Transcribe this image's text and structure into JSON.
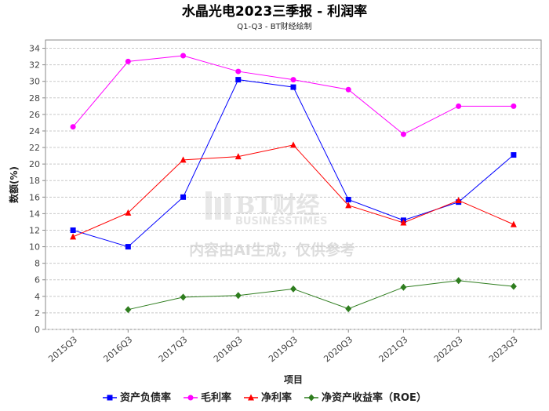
{
  "title": "水晶光电2023三季报 - 利润率",
  "subtitle": "Q1-Q3 - BT财经绘制",
  "watermark": {
    "brand": "BT财经",
    "brand_en": "BUSINESSTIMES",
    "note": "内容由AI生成，仅供参考"
  },
  "chart_data": {
    "type": "line",
    "xlabel": "项目",
    "ylabel": "数额(%)",
    "ylim": [
      0,
      35
    ],
    "yticks": [
      0,
      2,
      4,
      6,
      8,
      10,
      12,
      14,
      16,
      18,
      20,
      22,
      24,
      26,
      28,
      30,
      32,
      34
    ],
    "categories": [
      "2015Q3",
      "2016Q3",
      "2017Q3",
      "2018Q3",
      "2019Q3",
      "2020Q3",
      "2021Q3",
      "2022Q3",
      "2023Q3"
    ],
    "grid": true,
    "legend_position": "bottom",
    "series": [
      {
        "name": "资产负债率",
        "color": "#0000ff",
        "marker": "square",
        "values": [
          12.0,
          10.0,
          16.0,
          30.2,
          29.3,
          15.7,
          13.2,
          15.4,
          21.1
        ]
      },
      {
        "name": "毛利率",
        "color": "#ff00ff",
        "marker": "circle",
        "values": [
          24.5,
          32.4,
          33.1,
          31.2,
          30.2,
          29.0,
          23.6,
          27.0,
          27.0
        ]
      },
      {
        "name": "净利率",
        "color": "#ff0000",
        "marker": "triangle",
        "values": [
          11.2,
          14.1,
          20.5,
          20.9,
          22.3,
          15.0,
          12.9,
          15.6,
          12.7
        ]
      },
      {
        "name": "净资产收益率（ROE）",
        "color": "#2e7d1e",
        "marker": "diamond",
        "values": [
          null,
          2.4,
          3.9,
          4.1,
          4.9,
          2.5,
          5.1,
          5.9,
          5.2
        ]
      }
    ]
  }
}
